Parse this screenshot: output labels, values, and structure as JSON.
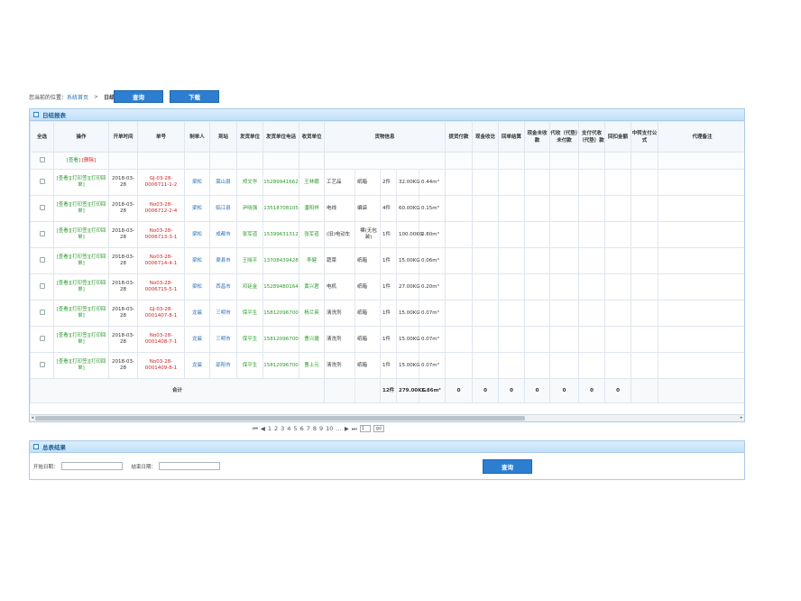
{
  "breadcrumb": {
    "prefix": "您当前的位置：",
    "home": "系统首页",
    "sep": ">",
    "current": "日结算"
  },
  "toolbar": {
    "query_label": "查询",
    "download_label": "下载"
  },
  "report": {
    "title": "日结报表",
    "columns": [
      "全选",
      "操作",
      "开单时间",
      "单号",
      "制单人",
      "到站",
      "发货单位",
      "发货单位电话",
      "收货单位",
      "货物信息",
      "提货付款",
      "现金收讫",
      "回单结算",
      "现金未收款",
      "代收（代垫）未付款",
      "支付代收（代垫）款",
      "回扣金额",
      "中转支付公式",
      "代理备注"
    ],
    "filter_ops": {
      "add": "[查看]",
      "del": "[删除]"
    },
    "rows": [
      {
        "op": "[查看][打印签][打印回单]",
        "date": "2018-03-28",
        "no": "GJ-03-28-0006711-1-2",
        "no_color": "red",
        "maker": "梁松",
        "station": "嵩山县",
        "shipper": "郑文华",
        "phone": "15289941662",
        "consignee": "王林娜",
        "cargo": [
          "工艺品",
          "纸箱",
          "2件",
          "32.00KG",
          "0.44m³"
        ]
      },
      {
        "op": "[查看][打印签][打印回单]",
        "date": "2018-03-28",
        "no": "No03-28-0006712-2-4",
        "no_color": "red",
        "maker": "梁松",
        "station": "临江县",
        "shipper": "尹晓强",
        "phone": "13518708105",
        "consignee": "潘阳祥",
        "cargo": [
          "电线",
          "编袋",
          "4件",
          "60.00KG",
          "0.15m³"
        ]
      },
      {
        "op": "[查看][打印签][打印回单]",
        "date": "2018-03-28",
        "no": "No03-28-0006713-3-1",
        "no_color": "red",
        "maker": "梁松",
        "station": "成都市",
        "shipper": "张军道",
        "phone": "15399631312",
        "consignee": "张军道",
        "cargo": [
          "(旧)电动车",
          "裸(无包装)",
          "1件",
          "100.00KG",
          "0.80m³"
        ]
      },
      {
        "op": "[查看][打印签][打印回单]",
        "date": "2018-03-28",
        "no": "No03-28-0006714-4-1",
        "no_color": "red",
        "maker": "梁松",
        "station": "渠县市",
        "shipper": "王晓平",
        "phone": "13708439428",
        "consignee": "李健",
        "cargo": [
          "蔬菜",
          "纸箱",
          "1件",
          "15.00KG",
          "0.06m³"
        ]
      },
      {
        "op": "[查看][打印签][打印回单]",
        "date": "2018-03-28",
        "no": "No03-28-0006715-5-1",
        "no_color": "red",
        "maker": "梁松",
        "station": "西昌市",
        "shipper": "邓廷金",
        "phone": "15289480164",
        "consignee": "黄兴君",
        "cargo": [
          "电机",
          "纸箱",
          "1件",
          "27.00KG",
          "0.20m³"
        ]
      },
      {
        "op": "[查看][打印签][打印回单]",
        "date": "2018-03-28",
        "no": "GJ-03-28-0001407-8-1",
        "no_color": "red",
        "maker": "龙晨",
        "station": "三明市",
        "shipper": "保平生",
        "phone": "15812096700",
        "consignee": "杨兰英",
        "cargo": [
          "清洗剂",
          "纸箱",
          "1件",
          "15.00KG",
          "0.07m³"
        ]
      },
      {
        "op": "[查看][打印签][打印回单]",
        "date": "2018-03-28",
        "no": "No03-28-0001408-7-1",
        "no_color": "red",
        "maker": "龙晨",
        "station": "三明市",
        "shipper": "保平生",
        "phone": "15812096700",
        "consignee": "曹兴捷",
        "cargo": [
          "清洗剂",
          "纸箱",
          "1件",
          "15.00KG",
          "0.07m³"
        ]
      },
      {
        "op": "[查看][打印签][打印回单]",
        "date": "2018-03-28",
        "no": "No03-28-0001409-8-1",
        "no_color": "red",
        "maker": "龙晨",
        "station": "邵阳市",
        "shipper": "保平生",
        "phone": "15812096700",
        "consignee": "曹上元",
        "cargo": [
          "清洗剂",
          "纸箱",
          "1件",
          "15.00KG",
          "0.07m³"
        ]
      }
    ],
    "total": {
      "label": "合计",
      "pieces": "12件",
      "weight": "279.00KG",
      "volume": "1.86m³",
      "amounts": [
        "0",
        "0",
        "0",
        "0",
        "0",
        "0",
        "0"
      ]
    }
  },
  "pager": {
    "first": "⏮",
    "prev": "◀",
    "pages": [
      "1",
      "2",
      "3",
      "4",
      "5",
      "6",
      "7",
      "8",
      "9",
      "10",
      "…"
    ],
    "next": "▶",
    "last": "⏭",
    "input": "1",
    "go": "go"
  },
  "summary": {
    "title": "总表结果",
    "start_label": "开始日期：",
    "end_label": "结束日期：",
    "query_label": "查询"
  },
  "colors": {
    "accent": "#2c7fd0",
    "panel_head": "#c2e0f8",
    "red": "#d12222",
    "green": "#2a9a2a"
  }
}
